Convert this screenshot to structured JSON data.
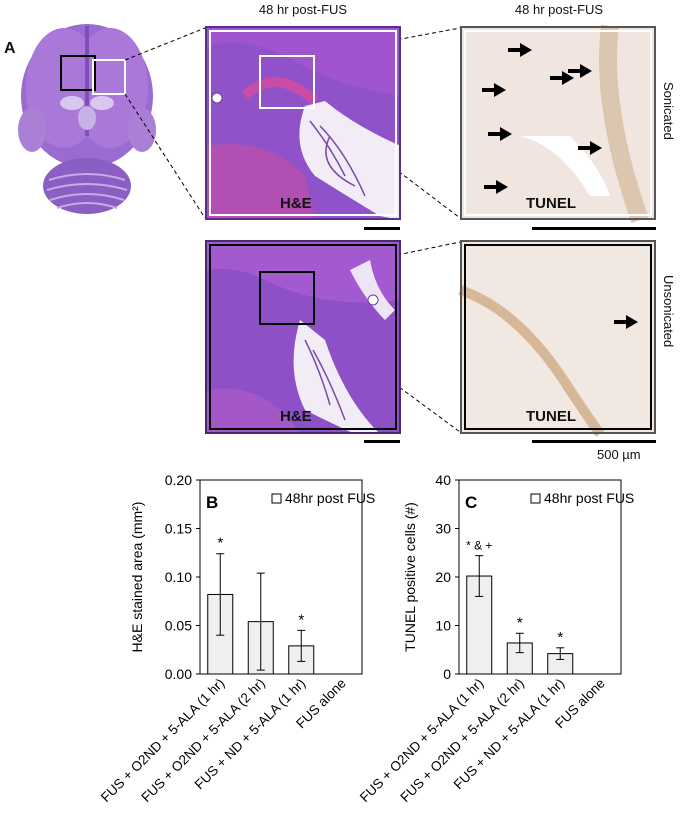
{
  "panelA": {
    "letter": "A",
    "col_titles": [
      "48 hr post-FUS",
      "48 hr post-FUS"
    ],
    "row_labels": [
      "Sonicated",
      "Unsonicated"
    ],
    "stain_labels": {
      "he_top": "H&E",
      "tunel_top": "TUNEL",
      "he_bottom": "H&E",
      "tunel_bottom": "TUNEL"
    },
    "scale_bar_label": "500 µm"
  },
  "chart_data": [
    {
      "type": "bar",
      "panel": "B",
      "legend": "48hr post FUS",
      "ylabel": "H&E stained area (mm²)",
      "ylim": [
        0,
        0.2
      ],
      "yticks": [
        "0.00",
        "0.05",
        "0.10",
        "0.15",
        "0.20"
      ],
      "tick_values": [
        0,
        0.05,
        0.1,
        0.15,
        0.2
      ],
      "categories": [
        "FUS + O2ND + 5-ALA (1 hr)",
        "FUS + O2ND + 5-ALA (2 hr)",
        "FUS + ND + 5-ALA (1 hr)",
        "FUS alone"
      ],
      "values": [
        0.082,
        0.054,
        0.029,
        0
      ],
      "errors": [
        0.042,
        0.05,
        0.016,
        0
      ],
      "annotations": [
        "*",
        "",
        "*",
        ""
      ]
    },
    {
      "type": "bar",
      "panel": "C",
      "legend": "48hr post FUS",
      "ylabel": "TUNEL positive cells (#)",
      "ylim": [
        0,
        40
      ],
      "yticks": [
        "0",
        "10",
        "20",
        "30",
        "40"
      ],
      "tick_values": [
        0,
        10,
        20,
        30,
        40
      ],
      "categories": [
        "FUS + O2ND + 5-ALA (1 hr)",
        "FUS + O2ND + 5-ALA (2 hr)",
        "FUS + ND + 5-ALA (1 hr)",
        "FUS alone"
      ],
      "values": [
        20.2,
        6.4,
        4.2,
        0
      ],
      "errors": [
        4.2,
        2.0,
        1.2,
        0
      ],
      "annotations": [
        "* & +",
        "*",
        "*",
        ""
      ]
    }
  ]
}
